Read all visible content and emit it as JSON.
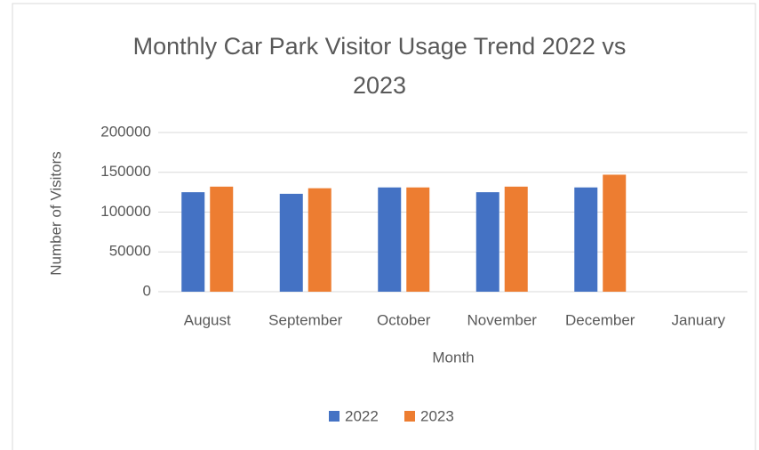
{
  "chart_data": {
    "type": "bar",
    "title": "Monthly Car Park Visitor Usage Trend 2022 vs 2023",
    "x_label": "Month",
    "y_label": "Number of Visitors",
    "categories": [
      "August",
      "September",
      "October",
      "November",
      "December",
      "January"
    ],
    "series": [
      {
        "name": "2022",
        "color": "#4472c4",
        "values": [
          125000,
          123000,
          131000,
          125000,
          131000,
          null
        ]
      },
      {
        "name": "2023",
        "color": "#ed7d31",
        "values": [
          132000,
          130000,
          131000,
          132000,
          147000,
          null
        ]
      }
    ],
    "ylim": [
      0,
      200000
    ],
    "yticks": [
      0,
      50000,
      100000,
      150000,
      200000
    ],
    "grid": true,
    "legend": "bottom"
  }
}
